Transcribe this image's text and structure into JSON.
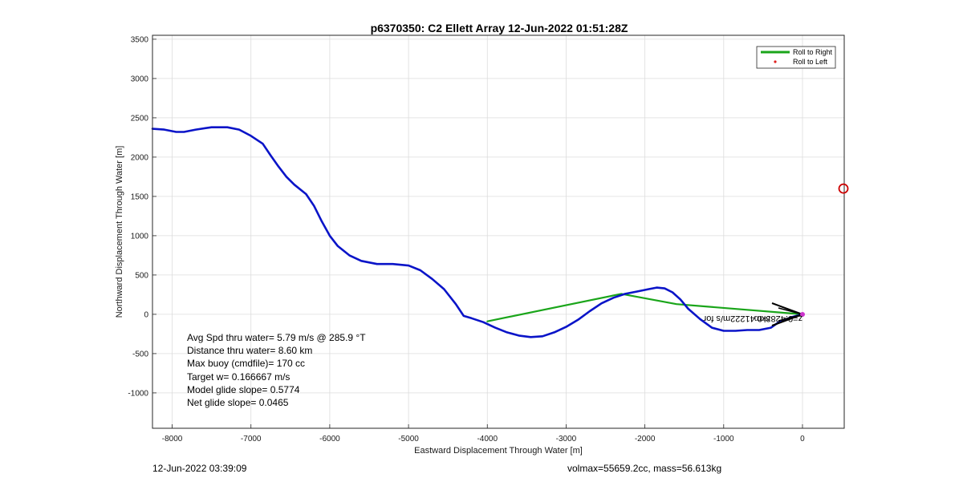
{
  "chart_data": {
    "type": "line",
    "title": "p6370350: C2 Ellett Array 12-Jun-2022 01:51:28Z",
    "xlabel": "Eastward Displacement Through Water [m]",
    "ylabel": "Northward Displacement Through Water [m]",
    "xlim": [
      -8250,
      530
    ],
    "ylim": [
      -1450,
      3550
    ],
    "grid": true,
    "xticks": [
      -8000,
      -7000,
      -6000,
      -5000,
      -4000,
      -3000,
      -2000,
      -1000,
      0
    ],
    "yticks": [
      -1000,
      -500,
      0,
      500,
      1000,
      1500,
      2000,
      2500,
      3000,
      3500
    ],
    "legend": {
      "placement": "top-right",
      "entries": [
        {
          "label": "Roll to Right",
          "color": "#1aa51a",
          "marker": "line"
        },
        {
          "label": "Roll to Left",
          "color": "#e0201e",
          "marker": "dot"
        }
      ]
    },
    "series": [
      {
        "color": "#0a14c8",
        "x": [
          -8250,
          -8100,
          -7950,
          -7850,
          -7700,
          -7500,
          -7300,
          -7150,
          -7000,
          -6850,
          -6750,
          -6650,
          -6550,
          -6450,
          -6300,
          -6200,
          -6100,
          -6000,
          -5900,
          -5750,
          -5600,
          -5400,
          -5200,
          -5000,
          -4850,
          -4700,
          -4550,
          -4400,
          -4300,
          -4200,
          -4050,
          -3900,
          -3750,
          -3600,
          -3450,
          -3300,
          -3150,
          -3000,
          -2850,
          -2700,
          -2550,
          -2400,
          -2250,
          -2100,
          -1950,
          -1850,
          -1750,
          -1650,
          -1550,
          -1450,
          -1300,
          -1150,
          -1000,
          -850,
          -700,
          -550,
          -400,
          -300,
          -150,
          0
        ],
        "y": [
          2360,
          2350,
          2320,
          2320,
          2350,
          2380,
          2380,
          2350,
          2270,
          2170,
          2020,
          1880,
          1750,
          1650,
          1530,
          1380,
          1180,
          1000,
          870,
          750,
          680,
          640,
          640,
          620,
          560,
          450,
          320,
          130,
          -20,
          -50,
          -100,
          -170,
          -230,
          -270,
          -290,
          -280,
          -230,
          -160,
          -70,
          40,
          140,
          210,
          260,
          290,
          320,
          340,
          330,
          280,
          190,
          70,
          -60,
          -170,
          -210,
          -210,
          -200,
          -200,
          -170,
          -100,
          -40,
          0
        ]
      },
      {
        "name": "Roll to Right",
        "color": "#1aa51a",
        "x": [
          -4000,
          -2300,
          -1600,
          0
        ],
        "y": [
          -90,
          260,
          130,
          0
        ]
      }
    ],
    "marker": {
      "type": "circle",
      "color": "#cc0000",
      "x": 520,
      "y": 1600
    },
    "annotation": "z=0.4283km",
    "annotation_extra": "r=0.41222m/s for",
    "stats": [
      "Avg Spd thru water=  5.79 m/s @ 285.9 °T",
      "Distance thru water=  8.60 km",
      "Max buoy (cmdfile)= 170 cc",
      "Target w= 0.166667 m/s",
      "Model glide slope= 0.5774",
      "Net glide slope= 0.0465"
    ]
  },
  "footer": {
    "left": "12-Jun-2022 03:39:09",
    "right": "volmax=55659.2cc, mass=56.613kg"
  }
}
